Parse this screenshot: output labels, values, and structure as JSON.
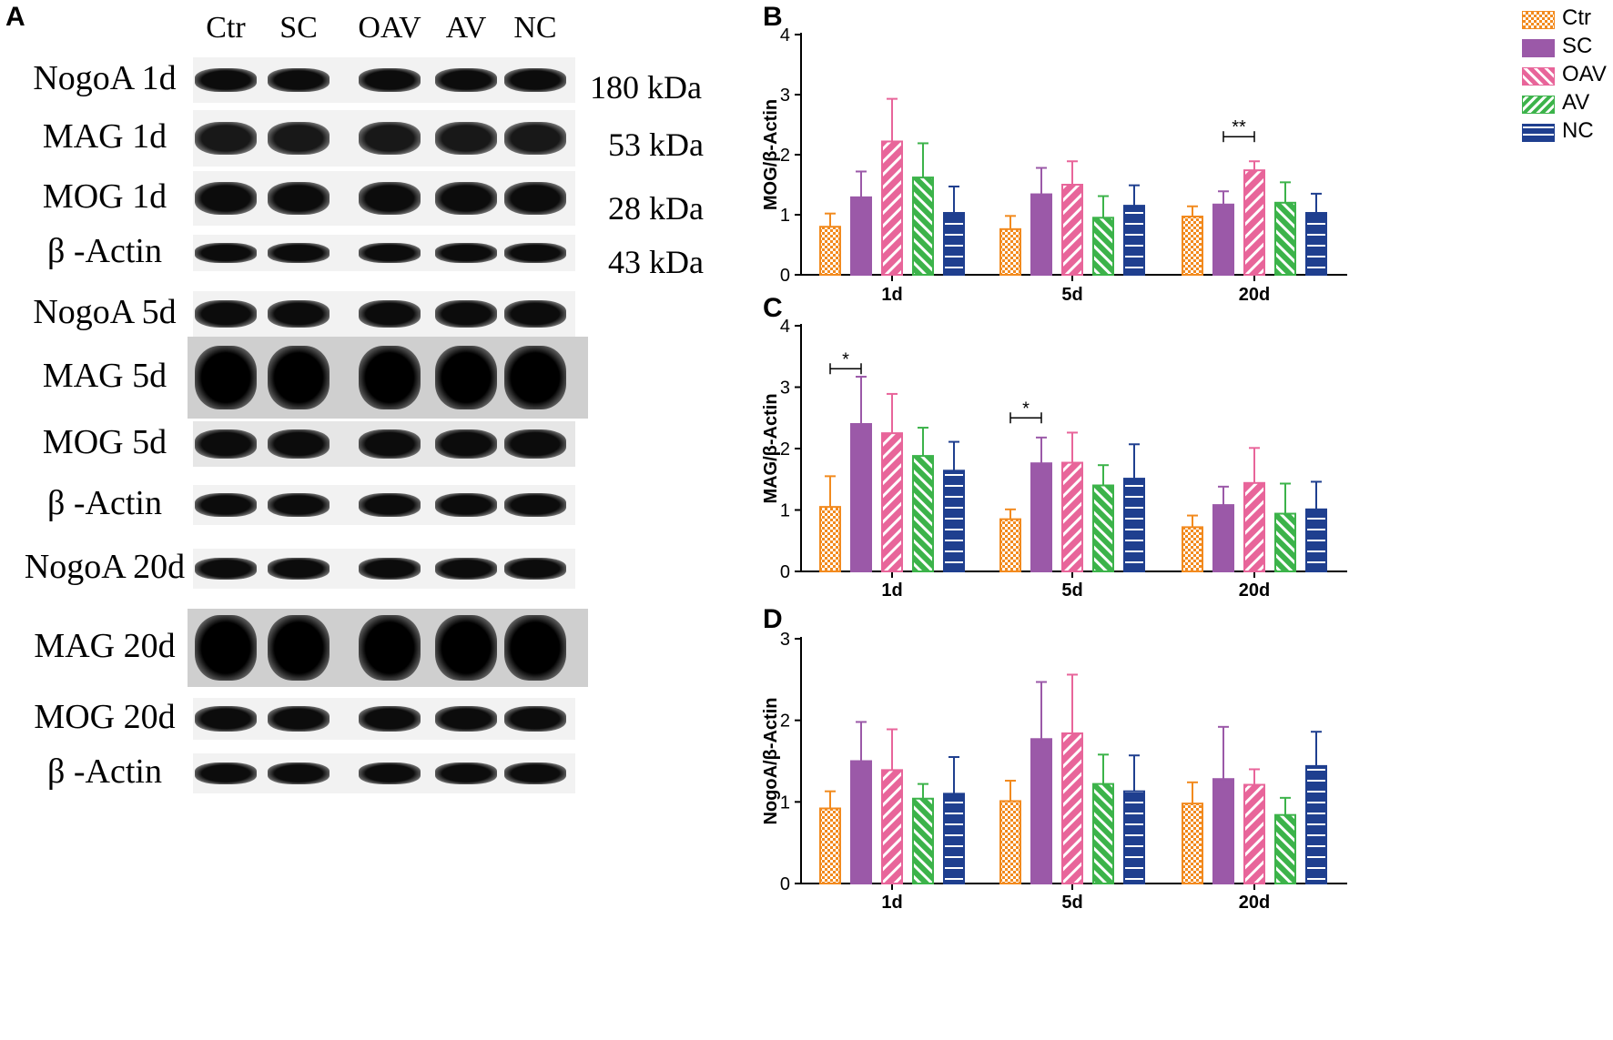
{
  "panels": {
    "a": "A",
    "b": "B",
    "c": "C",
    "d": "D"
  },
  "blot": {
    "lanes": [
      "Ctr",
      "SC",
      "OAV",
      "AV",
      "NC"
    ],
    "rows": [
      {
        "label": "NogoA 1d",
        "mw": "180 kDa"
      },
      {
        "label": "MAG 1d",
        "mw": "53 kDa"
      },
      {
        "label": "MOG 1d",
        "mw": "28 kDa"
      },
      {
        "label": "β -Actin",
        "mw": "43 kDa"
      },
      {
        "label": "NogoA 5d",
        "mw": ""
      },
      {
        "label": "MAG 5d",
        "mw": ""
      },
      {
        "label": "MOG 5d",
        "mw": ""
      },
      {
        "label": "β -Actin",
        "mw": ""
      },
      {
        "label": "NogoA 20d",
        "mw": ""
      },
      {
        "label": "MAG 20d",
        "mw": ""
      },
      {
        "label": "MOG 20d",
        "mw": ""
      },
      {
        "label": "β -Actin",
        "mw": ""
      }
    ]
  },
  "legend": {
    "items": [
      "Ctr",
      "SC",
      "OAV",
      "AV",
      "NC"
    ]
  },
  "colors": {
    "Ctr": "#f28a1e",
    "SC": "#9b59a8",
    "OAV": "#e8659a",
    "AV": "#3cb34a",
    "NC": "#1f3f8f"
  },
  "chart_data": [
    {
      "type": "bar",
      "panel": "B",
      "categories": [
        "1d",
        "5d",
        "20d"
      ],
      "ylabel": "MOG/β-Actin",
      "ylim": [
        0,
        4
      ],
      "yticks": [
        "0",
        "1",
        "2",
        "3",
        "4"
      ],
      "series": [
        {
          "name": "Ctr",
          "values": [
            0.8,
            0.76,
            0.97
          ],
          "errors": [
            0.22,
            0.22,
            0.17
          ]
        },
        {
          "name": "SC",
          "values": [
            1.29,
            1.34,
            1.17
          ],
          "errors": [
            0.43,
            0.44,
            0.22
          ]
        },
        {
          "name": "OAV",
          "values": [
            2.22,
            1.5,
            1.74
          ],
          "errors": [
            0.71,
            0.39,
            0.15
          ]
        },
        {
          "name": "AV",
          "values": [
            1.62,
            0.95,
            1.2
          ],
          "errors": [
            0.57,
            0.36,
            0.34
          ]
        },
        {
          "name": "NC",
          "values": [
            1.03,
            1.15,
            1.03
          ],
          "errors": [
            0.44,
            0.34,
            0.32
          ]
        }
      ],
      "annotations": [
        {
          "text": "**",
          "category": "20d",
          "from": "SC",
          "to": "OAV",
          "y": 2.3
        }
      ]
    },
    {
      "type": "bar",
      "panel": "C",
      "categories": [
        "1d",
        "5d",
        "20d"
      ],
      "ylabel": "MAG/β-Actin",
      "ylim": [
        0,
        4
      ],
      "yticks": [
        "0",
        "1",
        "2",
        "3",
        "4"
      ],
      "series": [
        {
          "name": "Ctr",
          "values": [
            1.05,
            0.85,
            0.72
          ],
          "errors": [
            0.5,
            0.16,
            0.19
          ]
        },
        {
          "name": "SC",
          "values": [
            2.4,
            1.76,
            1.08
          ],
          "errors": [
            0.77,
            0.42,
            0.3
          ]
        },
        {
          "name": "OAV",
          "values": [
            2.25,
            1.77,
            1.44
          ],
          "errors": [
            0.64,
            0.49,
            0.57
          ]
        },
        {
          "name": "AV",
          "values": [
            1.88,
            1.4,
            0.94
          ],
          "errors": [
            0.46,
            0.33,
            0.49
          ]
        },
        {
          "name": "NC",
          "values": [
            1.64,
            1.51,
            1.01
          ],
          "errors": [
            0.47,
            0.56,
            0.45
          ]
        }
      ],
      "annotations": [
        {
          "text": "*",
          "category": "1d",
          "from": "Ctr",
          "to": "SC",
          "y": 3.3
        },
        {
          "text": "*",
          "category": "5d",
          "from": "Ctr",
          "to": "SC",
          "y": 2.5
        }
      ]
    },
    {
      "type": "bar",
      "panel": "D",
      "categories": [
        "1d",
        "5d",
        "20d"
      ],
      "ylabel": "NogoA/β-Actin",
      "ylim": [
        0,
        3
      ],
      "yticks": [
        "0",
        "1",
        "2",
        "3"
      ],
      "series": [
        {
          "name": "Ctr",
          "values": [
            0.92,
            1.01,
            0.98
          ],
          "errors": [
            0.21,
            0.25,
            0.26
          ]
        },
        {
          "name": "SC",
          "values": [
            1.5,
            1.77,
            1.28
          ],
          "errors": [
            0.48,
            0.7,
            0.64
          ]
        },
        {
          "name": "OAV",
          "values": [
            1.39,
            1.84,
            1.21
          ],
          "errors": [
            0.5,
            0.72,
            0.19
          ]
        },
        {
          "name": "AV",
          "values": [
            1.04,
            1.22,
            0.84
          ],
          "errors": [
            0.18,
            0.36,
            0.21
          ]
        },
        {
          "name": "NC",
          "values": [
            1.1,
            1.13,
            1.44
          ],
          "errors": [
            0.45,
            0.44,
            0.42
          ]
        }
      ],
      "annotations": []
    }
  ]
}
